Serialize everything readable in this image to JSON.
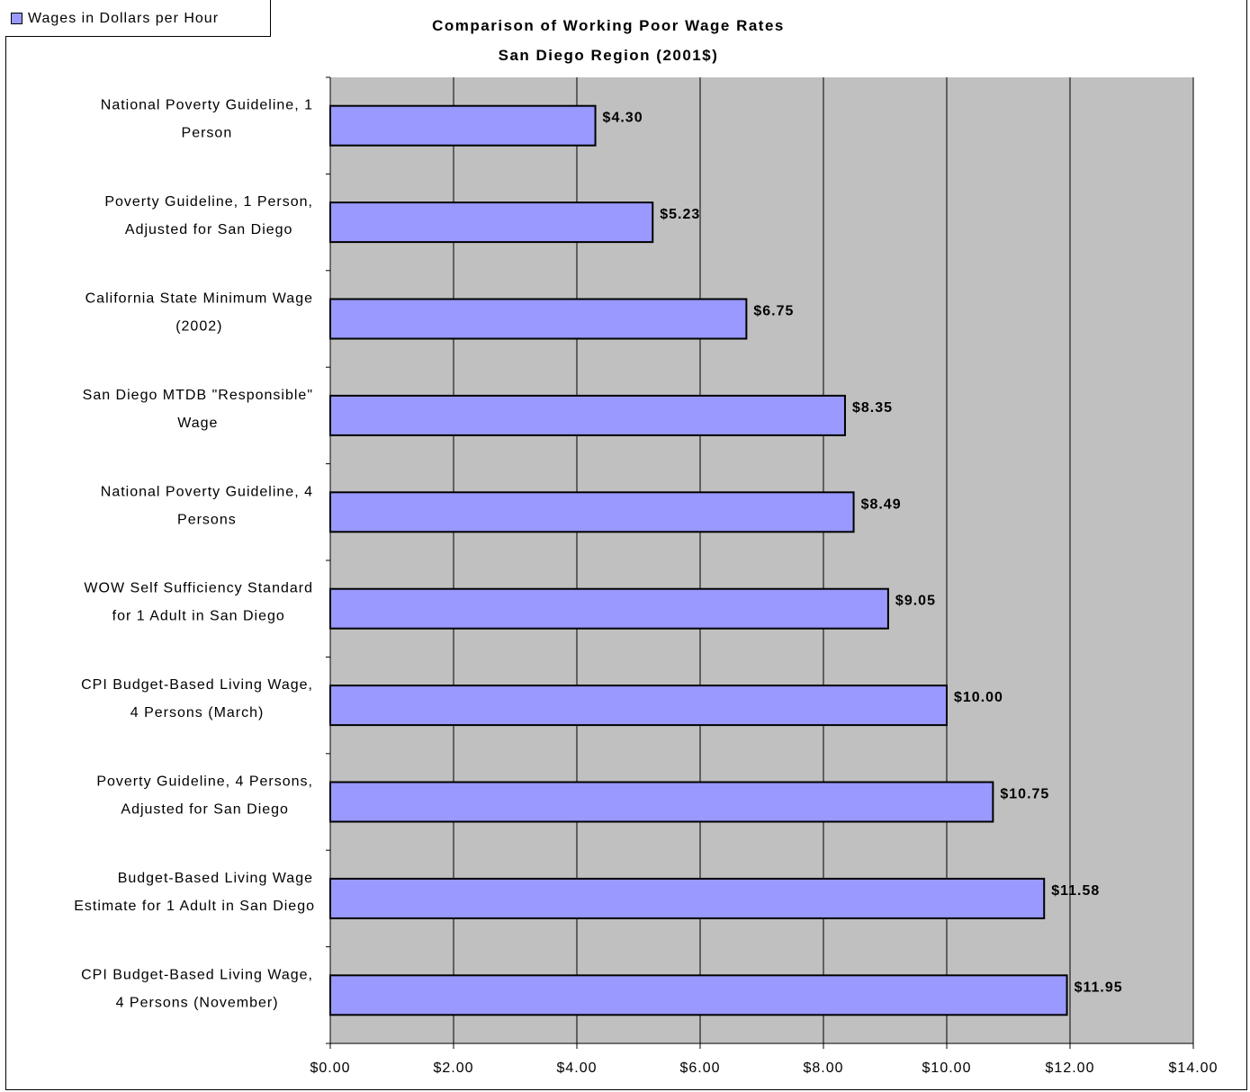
{
  "legend": {
    "label": "Wages in Dollars per Hour",
    "swatch_color": "#9999ff"
  },
  "chart_data": {
    "type": "bar",
    "orientation": "horizontal",
    "title": "Comparison of Working Poor Wage Rates",
    "subtitle": "San Diego Region (2001$)",
    "xlabel": "",
    "ylabel": "",
    "xlim": [
      0,
      14
    ],
    "x_ticks": [
      "$0.00",
      "$2.00",
      "$4.00",
      "$6.00",
      "$8.00",
      "$10.00",
      "$12.00",
      "$14.00"
    ],
    "grid": true,
    "legend_position": "top-left",
    "plot_background": "#c0c0c0",
    "bar_color": "#9999ff",
    "categories": [
      [
        "National Poverty Guideline, 1",
        "Person"
      ],
      [
        "Poverty Guideline, 1 Person,",
        "Adjusted for San Diego"
      ],
      [
        "California State Minimum Wage",
        "(2002)"
      ],
      [
        "San Diego MTDB \"Responsible\"",
        "Wage"
      ],
      [
        "National Poverty Guideline, 4",
        "Persons"
      ],
      [
        "WOW Self Sufficiency Standard",
        "for 1 Adult in San Diego"
      ],
      [
        "CPI Budget-Based Living Wage,",
        "4 Persons (March)"
      ],
      [
        "Poverty Guideline, 4 Persons,",
        "Adjusted for San Diego"
      ],
      [
        "Budget-Based Living Wage",
        "Estimate for 1 Adult in San Diego"
      ],
      [
        "CPI Budget-Based Living Wage,",
        "4 Persons (November)"
      ]
    ],
    "values": [
      4.3,
      5.23,
      6.75,
      8.35,
      8.49,
      9.05,
      10.0,
      10.75,
      11.58,
      11.95
    ],
    "data_labels": [
      "$4.30",
      "$5.23",
      "$6.75",
      "$8.35",
      "$8.49",
      "$9.05",
      "$10.00",
      "$10.75",
      "$11.58",
      "$11.95"
    ]
  }
}
